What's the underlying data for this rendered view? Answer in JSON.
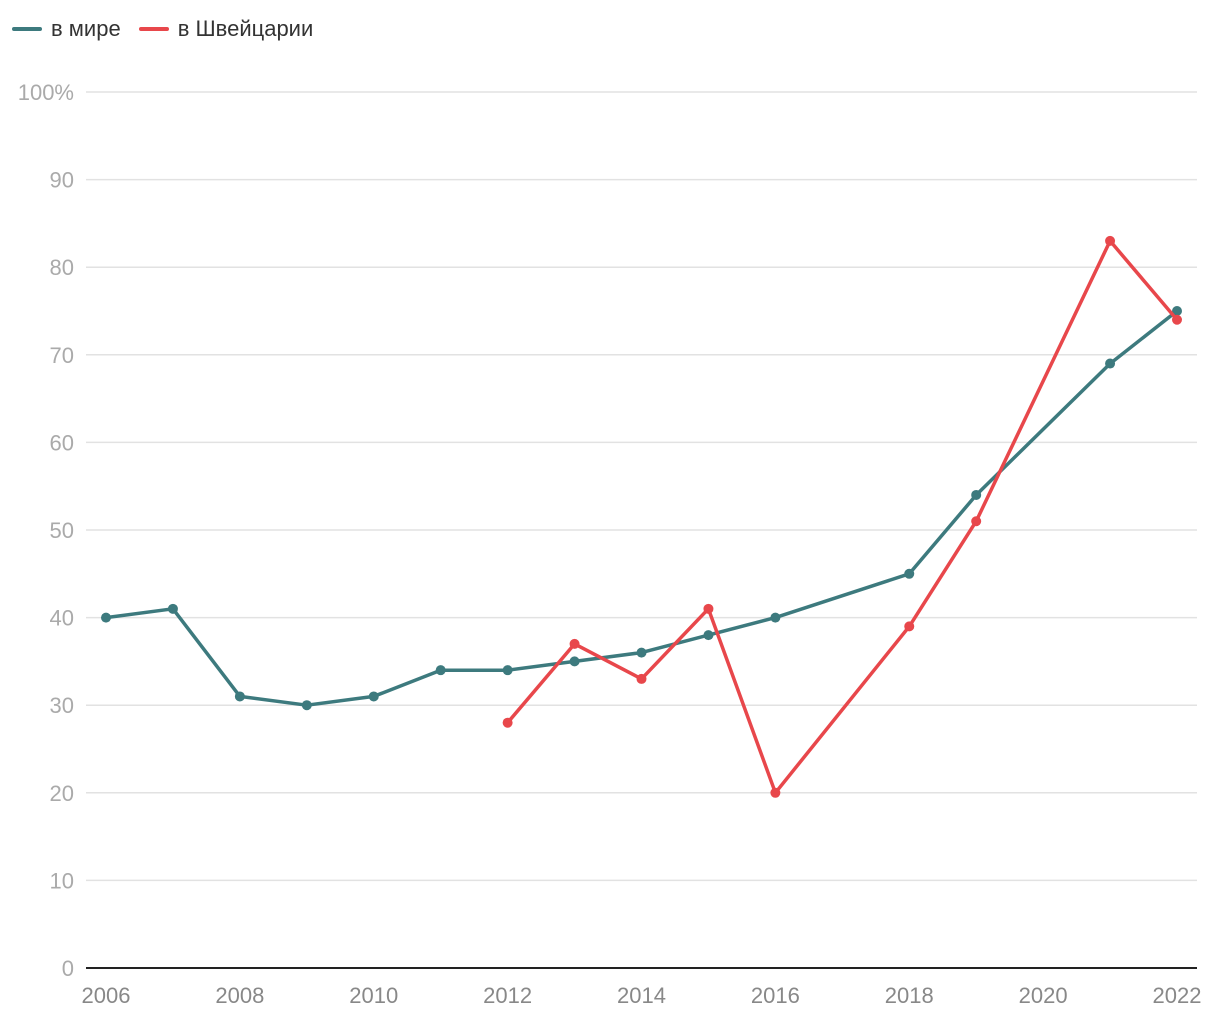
{
  "chart_data": {
    "type": "line",
    "title": "",
    "xlabel": "",
    "ylabel": "",
    "ylim": [
      0,
      100
    ],
    "xlim": [
      2006,
      2022
    ],
    "y_ticks": [
      "0",
      "10",
      "20",
      "30",
      "40",
      "50",
      "60",
      "70",
      "80",
      "90",
      "100%"
    ],
    "x_ticks": [
      "2006",
      "2008",
      "2010",
      "2012",
      "2014",
      "2016",
      "2018",
      "2020",
      "2022"
    ],
    "grid": true,
    "legend_position": "top-left",
    "series": [
      {
        "name": "в мире",
        "color": "#3d7a7e",
        "x": [
          2006,
          2007,
          2008,
          2009,
          2010,
          2011,
          2012,
          2013,
          2014,
          2015,
          2016,
          2018,
          2019,
          2021,
          2022
        ],
        "values": [
          40,
          41,
          31,
          30,
          31,
          34,
          34,
          35,
          36,
          38,
          40,
          45,
          54,
          69,
          75
        ]
      },
      {
        "name": "в Швейцарии",
        "color": "#e8474b",
        "x": [
          2012,
          2013,
          2014,
          2015,
          2016,
          2018,
          2019,
          2021,
          2022
        ],
        "values": [
          28,
          37,
          33,
          41,
          20,
          39,
          51,
          83,
          74
        ]
      }
    ]
  }
}
